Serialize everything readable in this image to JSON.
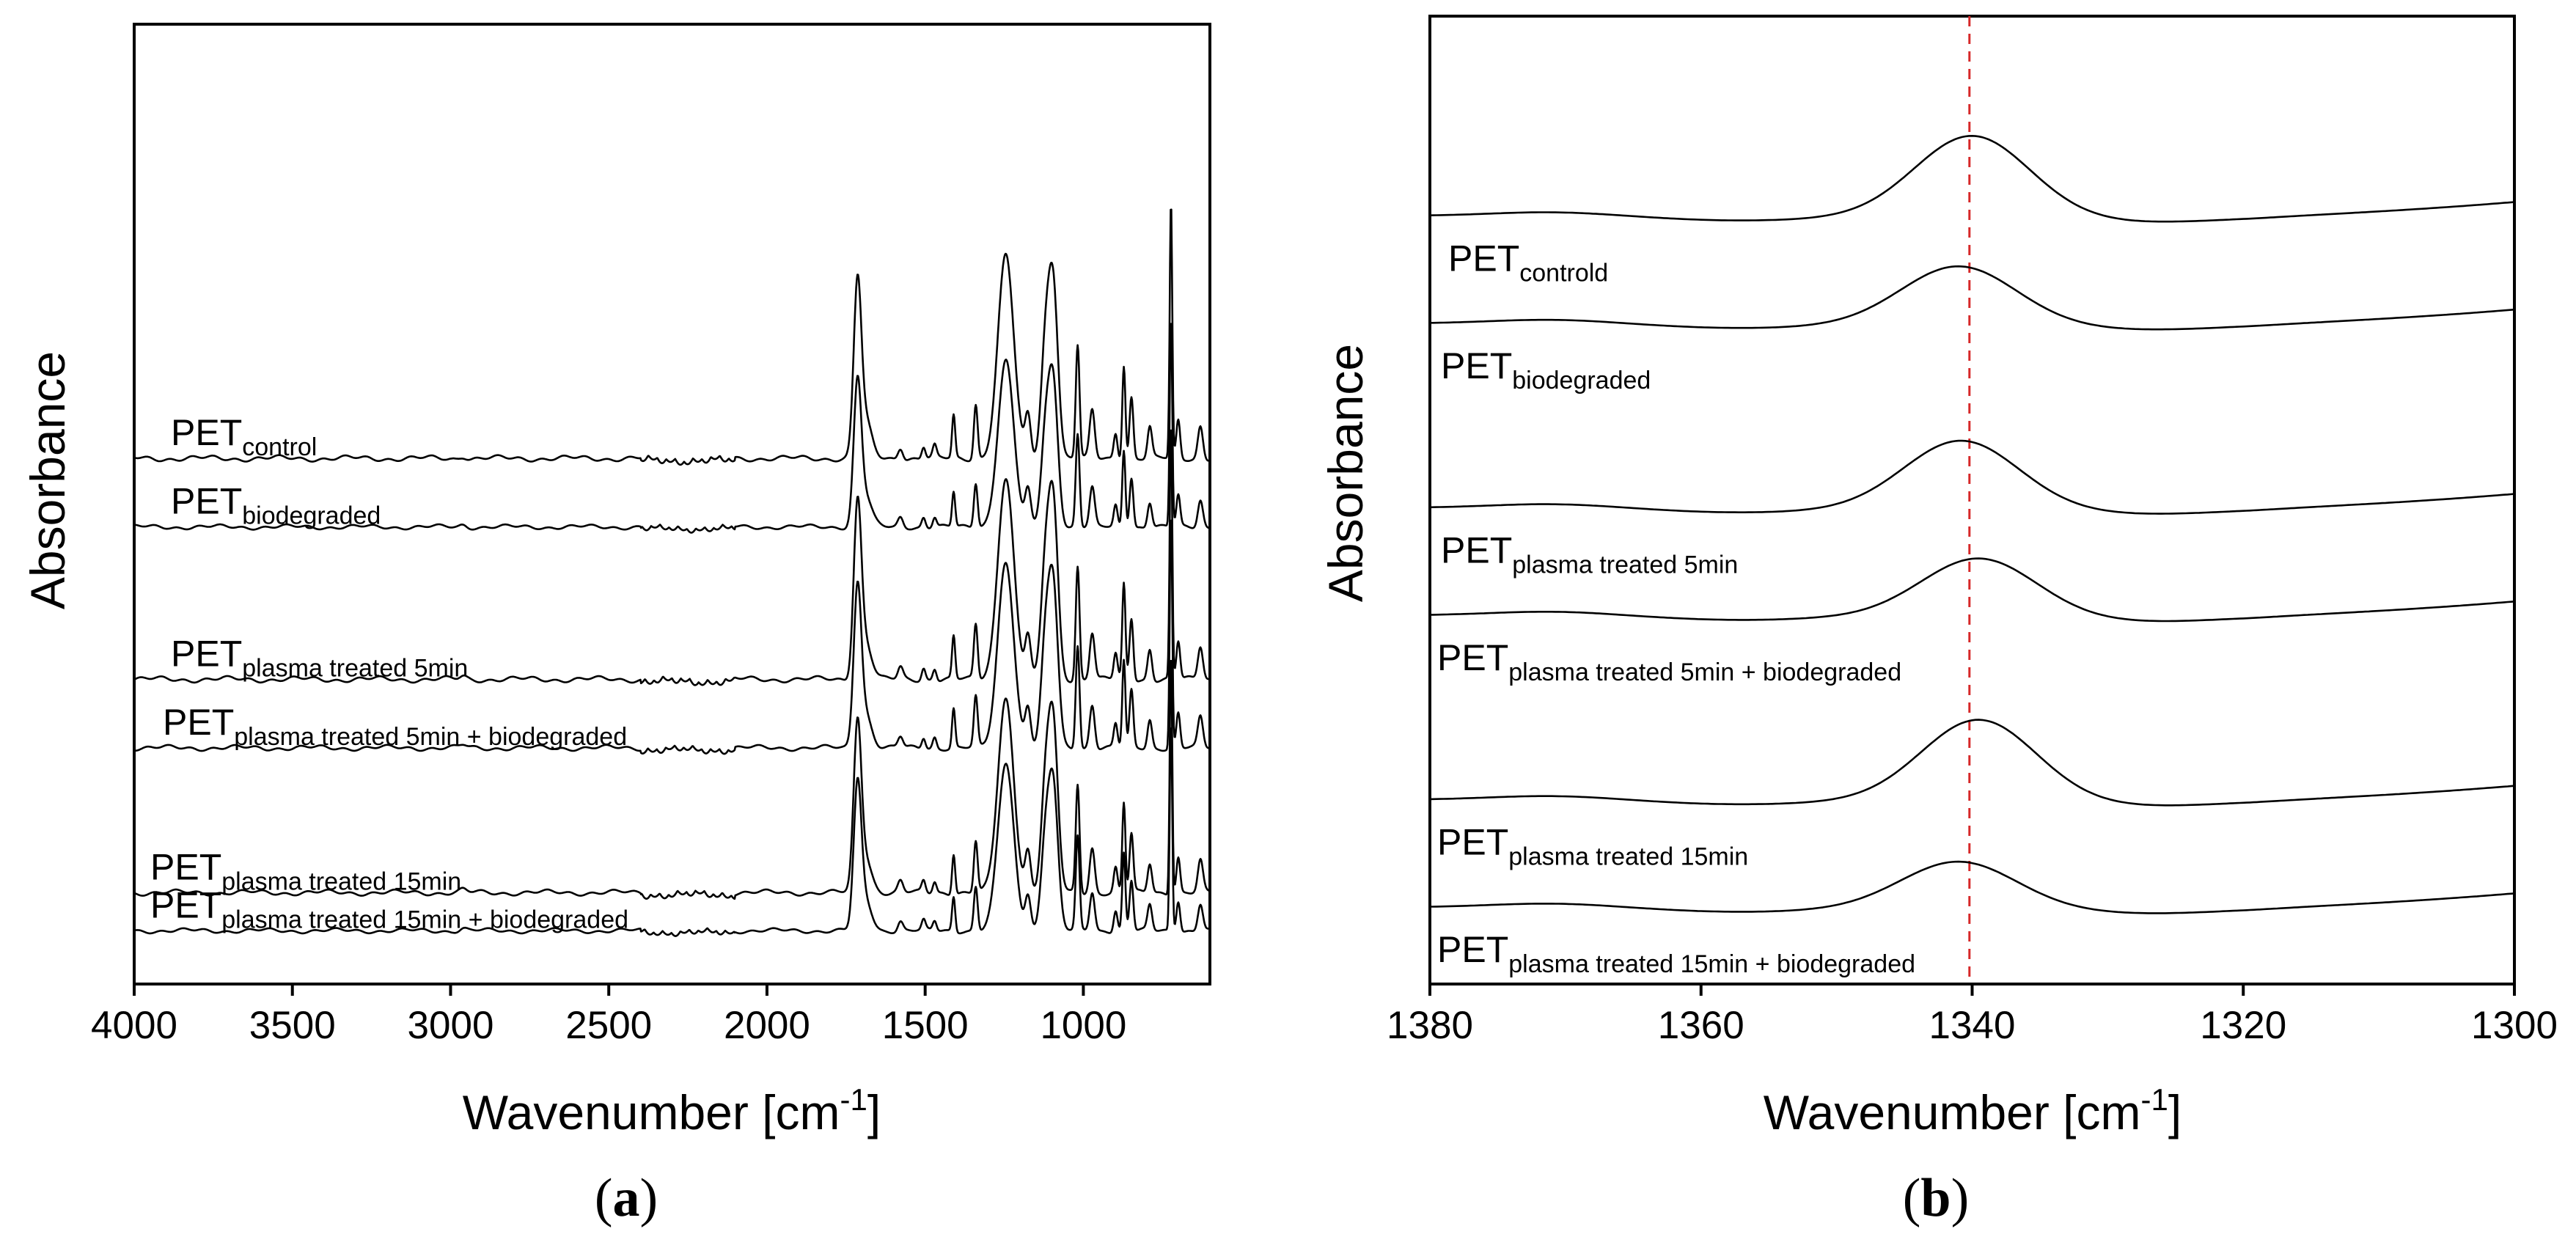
{
  "chart_data": [
    {
      "type": "line",
      "panel_label": "a",
      "title": "",
      "xlabel": "Wavenumber [cm",
      "xlabel_sup": "-1",
      "xlabel_end": "]",
      "ylabel": "Absorbance",
      "xlim": [
        4000,
        600
      ],
      "x_reversed": true,
      "xticks": [
        "4000",
        "3500",
        "3000",
        "2500",
        "2000",
        "1500",
        "1000"
      ],
      "xtick_values": [
        4000,
        3500,
        3000,
        2500,
        2000,
        1500,
        1000
      ],
      "yticks": [],
      "series": [
        {
          "base": "PET",
          "sub": "control",
          "offset": 6.9,
          "scale": 1.0
        },
        {
          "base": "PET",
          "sub": "biodegraded",
          "offset": 6.0,
          "scale": 0.82
        },
        {
          "base": "PET",
          "sub": "plasma treated 5min",
          "offset": 4.0,
          "scale": 1.0
        },
        {
          "base": "PET",
          "sub": "plasma treated 5min + biodegraded",
          "offset": 3.1,
          "scale": 0.92
        },
        {
          "base": "PET",
          "sub": "plasma treated 15min",
          "offset": 1.2,
          "scale": 0.95
        },
        {
          "base": "PET",
          "sub": "plasma treated 15min + biodegraded",
          "offset": 0.7,
          "scale": 0.82
        }
      ],
      "peaks_cm-1": [
        {
          "x": 1714,
          "h": 3.5,
          "w": 12
        },
        {
          "x": 1690,
          "h": 0.8,
          "w": 20
        },
        {
          "x": 1578,
          "h": 0.25,
          "w": 8
        },
        {
          "x": 1505,
          "h": 0.25,
          "w": 6
        },
        {
          "x": 1470,
          "h": 0.25,
          "w": 6
        },
        {
          "x": 1410,
          "h": 0.9,
          "w": 5
        },
        {
          "x": 1340,
          "h": 1.15,
          "w": 6
        },
        {
          "x": 1245,
          "h": 4.3,
          "w": 25
        },
        {
          "x": 1175,
          "h": 0.9,
          "w": 9
        },
        {
          "x": 1120,
          "h": 2.2,
          "w": 14
        },
        {
          "x": 1095,
          "h": 3.6,
          "w": 15
        },
        {
          "x": 1018,
          "h": 2.4,
          "w": 6
        },
        {
          "x": 972,
          "h": 1.0,
          "w": 8
        },
        {
          "x": 898,
          "h": 0.55,
          "w": 6
        },
        {
          "x": 872,
          "h": 2.0,
          "w": 5
        },
        {
          "x": 848,
          "h": 1.3,
          "w": 6
        },
        {
          "x": 790,
          "h": 0.65,
          "w": 7
        },
        {
          "x": 723,
          "h": 5.4,
          "w": 4
        },
        {
          "x": 700,
          "h": 0.8,
          "w": 6
        },
        {
          "x": 630,
          "h": 0.7,
          "w": 8
        }
      ]
    },
    {
      "type": "line",
      "panel_label": "b",
      "title": "",
      "xlabel": "Wavenumber [cm",
      "xlabel_sup": "-1",
      "xlabel_end": "]",
      "ylabel": "Absorbance",
      "xlim": [
        1380,
        1300
      ],
      "x_reversed": true,
      "xticks": [
        "1380",
        "1360",
        "1340",
        "1320",
        "1300"
      ],
      "xtick_values": [
        1380,
        1360,
        1340,
        1320,
        1300
      ],
      "yticks": [],
      "reference_line_x": 1340.2,
      "reference_line_color": "#d62728",
      "series": [
        {
          "base": "PET",
          "sub": "controld",
          "offset": 10.0,
          "peak_x": 1340.0,
          "height": 1.05
        },
        {
          "base": "PET",
          "sub": "biodegraded",
          "offset": 8.6,
          "peak_x": 1341.0,
          "height": 0.75
        },
        {
          "base": "PET",
          "sub": "plasma treated 5min",
          "offset": 6.2,
          "peak_x": 1340.8,
          "height": 0.88
        },
        {
          "base": "PET",
          "sub": "plasma treated 5min + biodegraded",
          "offset": 4.8,
          "peak_x": 1339.5,
          "height": 0.75
        },
        {
          "base": "PET",
          "sub": "plasma treated 15min",
          "offset": 2.4,
          "peak_x": 1339.5,
          "height": 1.05
        },
        {
          "base": "PET",
          "sub": "plasma treated 15min + biodegraded",
          "offset": 1.0,
          "peak_x": 1341.0,
          "height": 0.6
        }
      ]
    }
  ]
}
